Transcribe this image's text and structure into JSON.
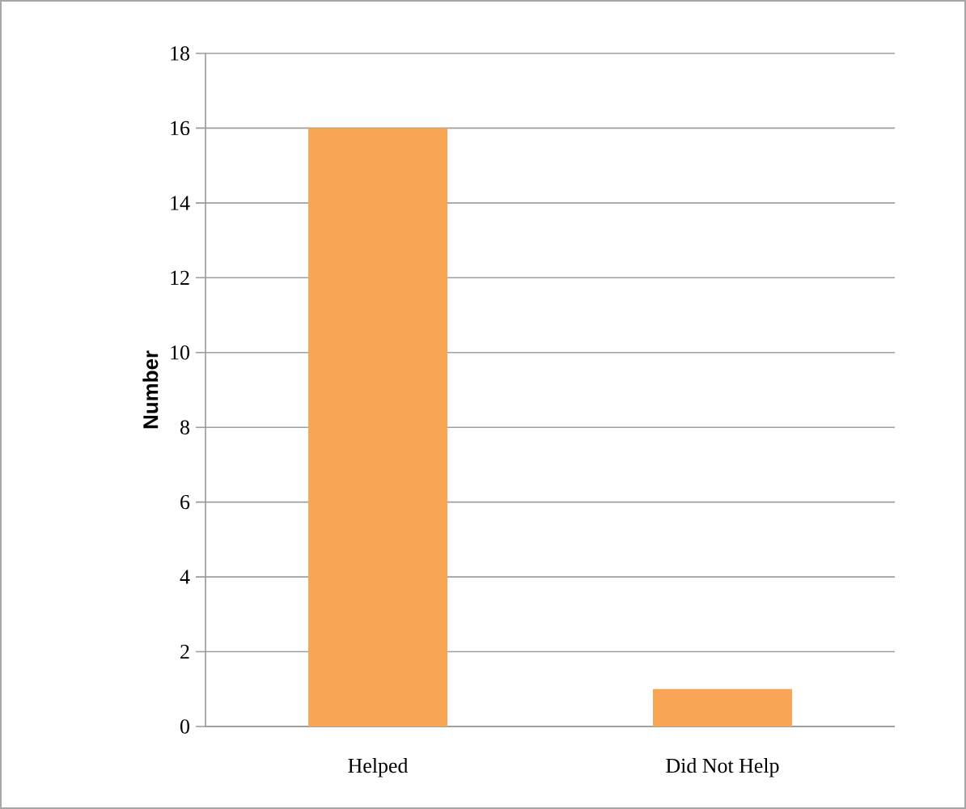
{
  "chart_data": {
    "type": "bar",
    "ylabel": "Number",
    "categories": [
      "Helped",
      "Did Not Help"
    ],
    "values": [
      16,
      1
    ],
    "color": "#f8a656",
    "ylim": [
      0,
      18
    ],
    "yticks": [
      0,
      2,
      4,
      6,
      8,
      10,
      12,
      14,
      16,
      18
    ],
    "grid": "y"
  }
}
